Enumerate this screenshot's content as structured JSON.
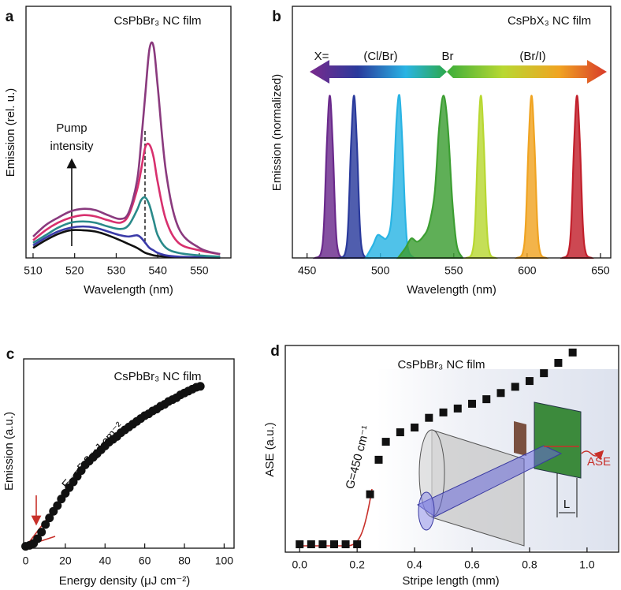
{
  "chart_data": [
    {
      "type": "line",
      "panel_label": "a",
      "title": "CsPbBr₃ NC film",
      "xlabel": "Wavelength (nm)",
      "ylabel": "Emission (rel. u.)",
      "annotations": [
        "Pump",
        "intensity"
      ],
      "xlim": [
        508.3,
        557.6
      ],
      "ylim": [
        0,
        100
      ],
      "xticks": [
        510,
        520,
        530,
        540,
        550
      ],
      "x": [
        510,
        513,
        516,
        519,
        522,
        525,
        528,
        531,
        533,
        535,
        536,
        537,
        538,
        539,
        540,
        542,
        545,
        550,
        555
      ],
      "series": [
        {
          "color": "#111111",
          "values": [
            4,
            7,
            9.5,
            11,
            11,
            10.5,
            9,
            7,
            5.5,
            4,
            3,
            2,
            1.5,
            1,
            0.8,
            0.5,
            0.3,
            0.2,
            0.1
          ]
        },
        {
          "color": "#3a3aa8",
          "values": [
            5,
            8,
            10.5,
            12,
            12.5,
            12,
            10.5,
            9,
            8.5,
            9,
            8,
            6,
            4,
            3,
            2,
            1,
            0.5,
            0.3,
            0.2
          ]
        },
        {
          "color": "#2a8a8a",
          "values": [
            6,
            9,
            12,
            14,
            14.5,
            14,
            12.5,
            11.5,
            13,
            19,
            23,
            24,
            21,
            15,
            9,
            4,
            2,
            1,
            0.5
          ]
        },
        {
          "color": "#d8306e",
          "values": [
            7,
            11,
            14,
            16,
            17,
            16.5,
            15,
            14,
            17,
            27,
            35,
            44,
            45,
            40,
            30,
            15,
            6,
            3,
            1.5
          ]
        },
        {
          "color": "#8a3a7e",
          "values": [
            8.5,
            13,
            16,
            18.5,
            19.5,
            19,
            17,
            15.5,
            18,
            30.5,
            46,
            65,
            83,
            84,
            68,
            34,
            12,
            4,
            1.5
          ]
        }
      ]
    },
    {
      "type": "area",
      "panel_label": "b",
      "title": "CsPbX₃ NC film",
      "xlabel": "Wavelength (nm)",
      "ylabel": "Emission (normalized)",
      "annotations": [
        "X=",
        "(Cl/Br)",
        "Br",
        "(Br/I)"
      ],
      "xlim": [
        440,
        657
      ],
      "ylim": [
        0,
        1.55
      ],
      "xticks": [
        450,
        500,
        550,
        600,
        650
      ],
      "series": [
        {
          "color": "#6a2a8c",
          "x": [
            455.5,
            459.5,
            461.5,
            463.5,
            465.5,
            467.5,
            469.5,
            471.5,
            475.5
          ],
          "values": [
            0,
            0.03,
            0.2,
            0.7,
            1,
            0.7,
            0.2,
            0.03,
            0
          ]
        },
        {
          "color": "#2a3a9c",
          "x": [
            472,
            476,
            478,
            480,
            482,
            484,
            486,
            488,
            492
          ],
          "values": [
            0,
            0.03,
            0.2,
            0.7,
            1,
            0.7,
            0.2,
            0.03,
            0
          ]
        },
        {
          "color": "#2ab4e4",
          "x": [
            490,
            495,
            498,
            501,
            504,
            507,
            509,
            511,
            513,
            515,
            517,
            519,
            523
          ],
          "values": [
            0,
            0.08,
            0.14,
            0.13,
            0.12,
            0.2,
            0.45,
            0.85,
            1,
            0.7,
            0.25,
            0.05,
            0
          ]
        },
        {
          "color": "#3c9e32",
          "x": [
            512,
            517,
            521,
            525,
            529,
            533,
            537,
            540,
            543,
            546,
            549,
            552,
            556
          ],
          "values": [
            0,
            0.06,
            0.12,
            0.1,
            0.13,
            0.2,
            0.4,
            0.8,
            1,
            0.8,
            0.35,
            0.08,
            0
          ]
        },
        {
          "color": "#b8d832",
          "x": [
            558.5,
            562.5,
            564.5,
            566.5,
            568.5,
            570.5,
            572.5,
            574.5,
            578.5
          ],
          "values": [
            0,
            0.03,
            0.2,
            0.7,
            1,
            0.7,
            0.2,
            0.03,
            0
          ]
        },
        {
          "color": "#f0a422",
          "x": [
            593,
            597,
            599,
            601,
            603,
            605,
            607,
            609,
            613
          ],
          "values": [
            0,
            0.03,
            0.2,
            0.7,
            1,
            0.7,
            0.2,
            0.03,
            0
          ]
        },
        {
          "color": "#c2202c",
          "x": [
            624,
            628,
            630,
            632,
            634,
            636,
            638,
            640,
            644
          ],
          "values": [
            0,
            0.03,
            0.2,
            0.7,
            1,
            0.7,
            0.2,
            0.03,
            0
          ]
        }
      ]
    },
    {
      "type": "scatter",
      "panel_label": "c",
      "title": "CsPbBr₃ NC film",
      "xlabel": "Energy density (μJ cm⁻²)",
      "ylabel": "Emission (a.u.)",
      "annotations": [
        "Eₜₕ=5.3 μJ cm⁻²"
      ],
      "marker": "circle",
      "xlim": [
        -1,
        105
      ],
      "ylim": [
        0,
        100
      ],
      "xticks": [
        0,
        20,
        40,
        60,
        80,
        100
      ],
      "series": [
        {
          "color": "#111111",
          "x": [
            0,
            2,
            4,
            6,
            8,
            10,
            12,
            14,
            16,
            18,
            20,
            22,
            24,
            26,
            28,
            30,
            32,
            34,
            36,
            38,
            40,
            42,
            44,
            46,
            48,
            50,
            52,
            54,
            56,
            58,
            60,
            62,
            64,
            66,
            68,
            70,
            72,
            74,
            76,
            78,
            80,
            82,
            84,
            86,
            88
          ],
          "values": [
            1,
            1.5,
            2.5,
            5,
            8.5,
            12.5,
            16,
            19.5,
            22.5,
            26,
            29,
            32,
            35,
            38,
            41,
            44,
            46,
            48,
            50,
            52,
            54,
            56,
            57.5,
            59,
            61,
            62.5,
            64,
            65.5,
            67,
            68.5,
            70,
            71,
            72.5,
            73.5,
            75,
            76,
            77.5,
            78.5,
            79.5,
            81,
            82,
            83,
            84,
            85,
            85.5
          ]
        }
      ]
    },
    {
      "type": "scatter",
      "panel_label": "d",
      "title": "CsPbBr₃ NC film",
      "xlabel": "Stripe length (mm)",
      "ylabel": "ASE (a.u.)",
      "annotations": [
        "G=450 cm⁻¹",
        "ASE",
        "L"
      ],
      "marker": "square",
      "xlim": [
        -0.05,
        1.11
      ],
      "ylim": [
        0,
        100
      ],
      "xticks": [
        {
          "value": 0,
          "label": "0.0"
        },
        0.2,
        0.4,
        0.6,
        0.8,
        {
          "value": 1,
          "label": "1.0"
        }
      ],
      "series": [
        {
          "color": "#111111",
          "x": [
            0,
            0.04,
            0.08,
            0.12,
            0.16,
            0.2,
            0.245,
            0.275,
            0.3,
            0.35,
            0.4,
            0.45,
            0.5,
            0.55,
            0.6,
            0.65,
            0.7,
            0.75,
            0.8,
            0.85,
            0.9,
            0.95
          ],
          "values": [
            3.8,
            3.8,
            3.8,
            3.8,
            3.8,
            3.8,
            28,
            44.7,
            53.4,
            58,
            60.3,
            65,
            67.6,
            69.5,
            71.8,
            74,
            77,
            80,
            82.8,
            86.6,
            91.6,
            96.6
          ]
        }
      ]
    }
  ]
}
